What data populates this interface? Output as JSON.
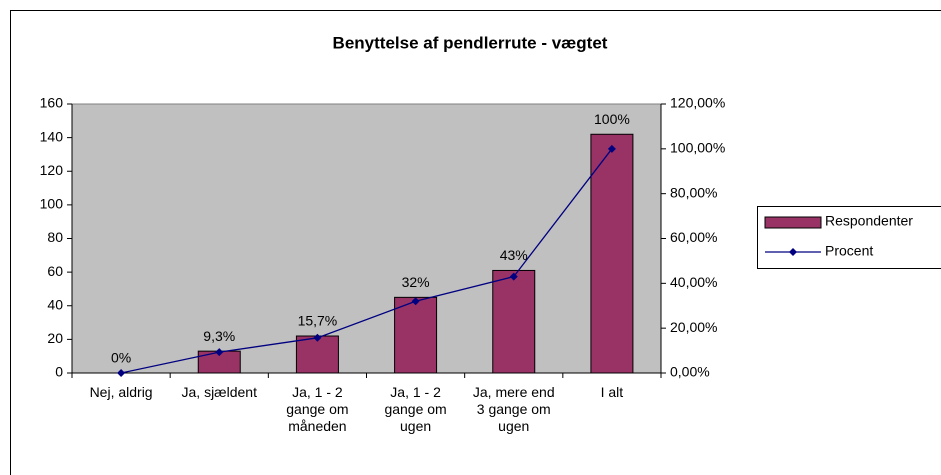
{
  "chart_data": {
    "type": "bar+line",
    "title": "Benyttelse af pendlerrute - vægtet",
    "categories": [
      "Nej, aldrig",
      "Ja, sjældent",
      "Ja, 1 - 2 gange om måneden",
      "Ja, 1 - 2 gange om ugen",
      "Ja, mere end 3 gange om ugen",
      "I alt"
    ],
    "series": [
      {
        "name": "Respondenter",
        "type": "bar",
        "color": "#993366",
        "values": [
          0,
          13,
          22,
          45,
          61,
          142
        ]
      },
      {
        "name": "Procent",
        "type": "line",
        "axis": "y2",
        "color": "#000080",
        "values": [
          0,
          9.3,
          15.7,
          32,
          43,
          100
        ],
        "value_labels": [
          "0%",
          "9,3%",
          "15,7%",
          "32%",
          "43%",
          "100%"
        ]
      }
    ],
    "ylim": [
      0,
      160
    ],
    "yticks": [
      0,
      20,
      40,
      60,
      80,
      100,
      120,
      140,
      160
    ],
    "y2lim": [
      0,
      120
    ],
    "y2ticks": [
      {
        "value": 0,
        "label": "0,00%"
      },
      {
        "value": 20,
        "label": "20,00%"
      },
      {
        "value": 40,
        "label": "40,00%"
      },
      {
        "value": 60,
        "label": "60,00%"
      },
      {
        "value": 80,
        "label": "80,00%"
      },
      {
        "value": 100,
        "label": "100,00%"
      },
      {
        "value": 120,
        "label": "120,00%"
      }
    ],
    "grid": false,
    "plot_background": "#c0c0c0",
    "legend": "right"
  }
}
